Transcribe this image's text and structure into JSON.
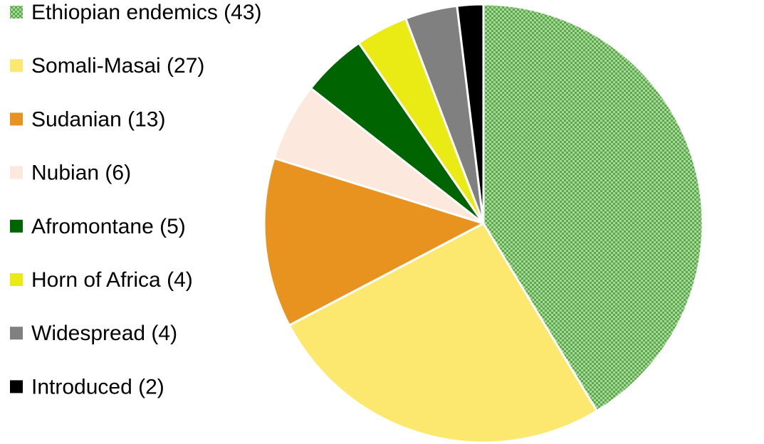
{
  "chart_data": {
    "type": "pie",
    "start_angle_deg": 0,
    "direction": "clockwise",
    "legend_position": "left",
    "slices": [
      {
        "label": "Ethiopian endemics (43)",
        "value": 43,
        "color": "#5aa84a",
        "fill": "checker",
        "color2": "#a6d99a"
      },
      {
        "label": "Somali-Masai (27)",
        "value": 27,
        "color": "#fde86f"
      },
      {
        "label": "Sudanian (13)",
        "value": 13,
        "color": "#e8921f"
      },
      {
        "label": "Nubian (6)",
        "value": 6,
        "color": "#fce8dc"
      },
      {
        "label": "Afromontane (5)",
        "value": 5,
        "color": "#006400"
      },
      {
        "label": "Horn of Africa (4)",
        "value": 4,
        "color": "#eaea14"
      },
      {
        "label": "Widespread (4)",
        "value": 4,
        "color": "#808080"
      },
      {
        "label": "Introduced (2)",
        "value": 2,
        "color": "#000000"
      }
    ]
  }
}
